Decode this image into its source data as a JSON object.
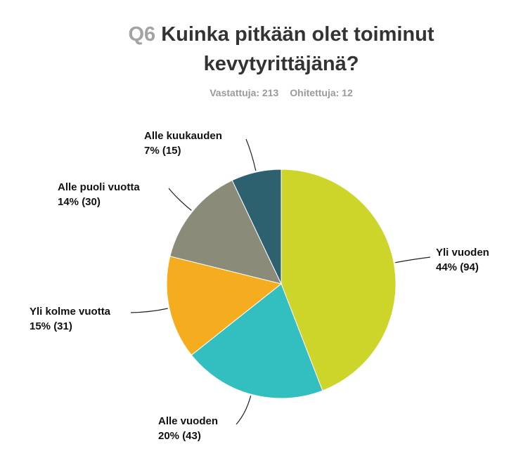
{
  "chart_data": {
    "type": "pie",
    "question_number": "Q6",
    "title": "Kuinka pitkään olet toiminut kevytyrittäjänä?",
    "subtitle": [
      "Vastattuja: 213",
      "Ohitettuja: 12"
    ],
    "categories": [
      "Yli vuoden",
      "Alle vuoden",
      "Yli kolme vuotta",
      "Alle puoli vuotta",
      "Alle kuukauden"
    ],
    "values": [
      94,
      43,
      31,
      30,
      15
    ],
    "value_labels": [
      "44% (94)",
      "20% (43)",
      "15% (31)",
      "14% (30)",
      "7% (15)"
    ],
    "colors": [
      "#cdd52a",
      "#33bfc0",
      "#f5ad1f",
      "#8b8b7a",
      "#2e6170"
    ]
  }
}
